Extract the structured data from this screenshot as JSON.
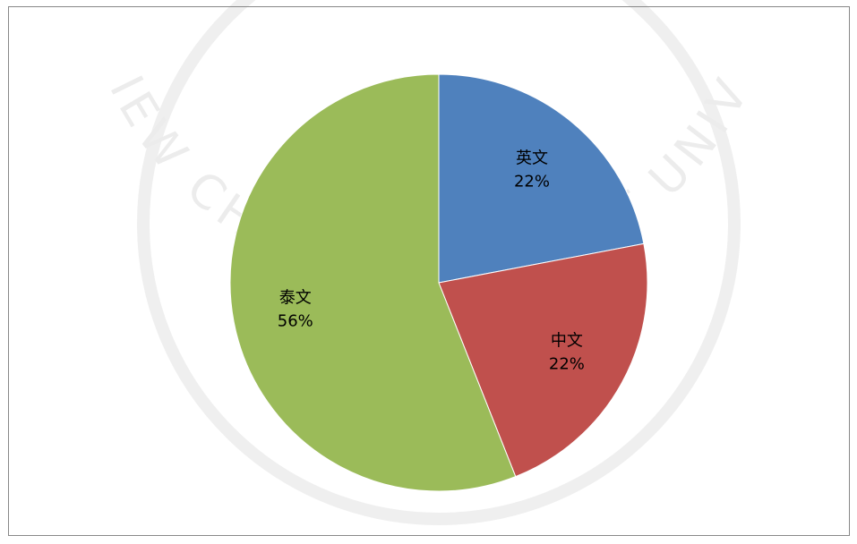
{
  "chart_data": {
    "type": "pie",
    "watermark": "HUACHIEW CHALERMPRAKIET UNIVERSITY",
    "categories": [
      "英文",
      "中文",
      "泰文"
    ],
    "values": [
      22,
      22,
      56
    ],
    "value_labels": [
      "22%",
      "22%",
      "56%"
    ],
    "colors": [
      "#4f81bd",
      "#c0504d",
      "#9bbb59"
    ]
  }
}
